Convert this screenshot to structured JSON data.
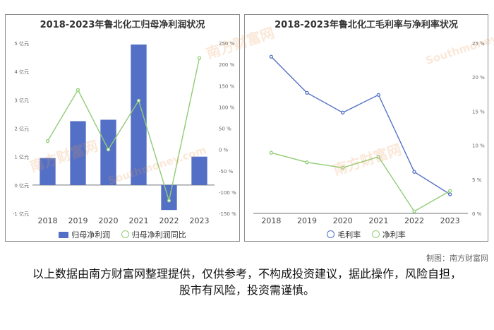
{
  "chart_data": [
    {
      "type": "bar+line",
      "title": "2018-2023年鲁北化工归母净利润状况",
      "categories": [
        "2018",
        "2019",
        "2020",
        "2021",
        "2022",
        "2023"
      ],
      "series": [
        {
          "name": "归母净利润",
          "type": "bar",
          "axis": "left",
          "color": "#5470c6",
          "values": [
            0.95,
            2.25,
            2.3,
            4.95,
            -0.88,
            1.0
          ]
        },
        {
          "name": "归母净利润同比",
          "type": "line",
          "axis": "right",
          "color": "#91cc75",
          "values": [
            20,
            140,
            0,
            115,
            -120,
            215
          ]
        }
      ],
      "y_left": {
        "ylim": [
          -1,
          5
        ],
        "ticks": [
          -1,
          0,
          1,
          2,
          3,
          4,
          5
        ],
        "tick_labels": [
          "-1 亿元",
          "0 亿元",
          "1 亿元",
          "2 亿元",
          "3 亿元",
          "4 亿元",
          "5 亿元"
        ]
      },
      "y_right": {
        "ylim": [
          -150,
          250
        ],
        "ticks": [
          -150,
          -100,
          -50,
          0,
          50,
          100,
          150,
          200,
          250
        ],
        "tick_labels": [
          "-150 %",
          "-100 %",
          "-50 %",
          "0 %",
          "50 %",
          "100 %",
          "150 %",
          "200 %",
          "250 %"
        ]
      },
      "grid": false,
      "legend_position": "bottom"
    },
    {
      "type": "line",
      "title": "2018-2023年鲁北化工毛利率与净利率状况",
      "categories": [
        "2018",
        "2019",
        "2020",
        "2021",
        "2022",
        "2023"
      ],
      "series": [
        {
          "name": "毛利率",
          "type": "line",
          "color": "#5470c6",
          "values": [
            23,
            17.7,
            14.8,
            17.4,
            6.1,
            2.8
          ]
        },
        {
          "name": "净利率",
          "type": "line",
          "color": "#91cc75",
          "values": [
            8.9,
            7.5,
            6.7,
            8.3,
            0.3,
            3.3
          ]
        }
      ],
      "y_right": {
        "ylim": [
          0,
          25
        ],
        "ticks": [
          0,
          5,
          10,
          15,
          20,
          25
        ],
        "tick_labels": [
          "0 %",
          "5 %",
          "10 %",
          "15 %",
          "20 %",
          "25 %"
        ]
      },
      "grid": false,
      "legend_position": "bottom"
    }
  ],
  "watermark_text": "南方财富网",
  "watermark_sub": "Southmoney.com",
  "credit": "制图：南方财富网",
  "disclaimer": "以上数据由南方财富网整理提供，仅供参考，不构成投资建议，据此操作，风险自担，股市有风险，投资需谨慎。"
}
